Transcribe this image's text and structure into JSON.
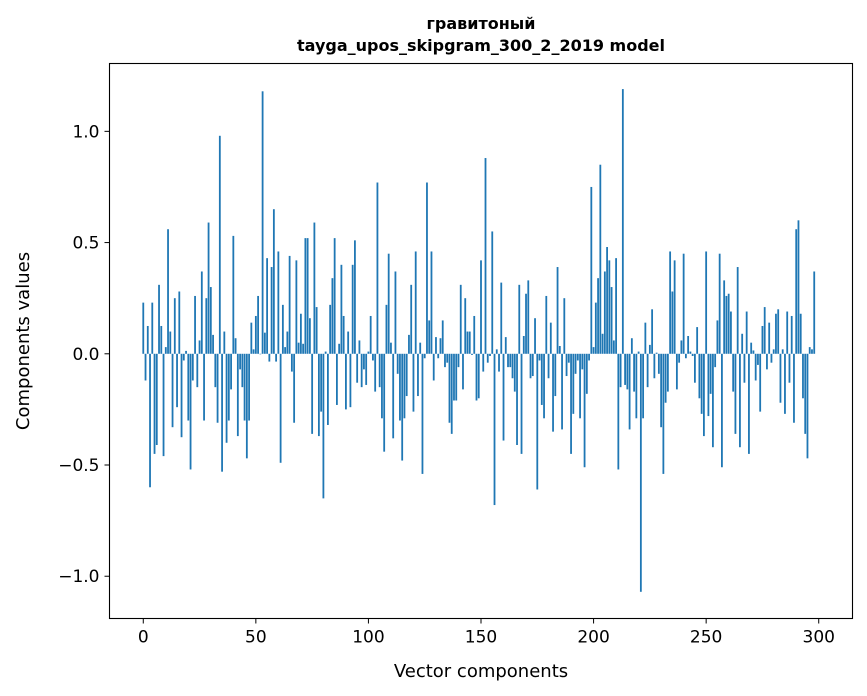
{
  "chart_data": {
    "type": "bar",
    "title": "гравитоный",
    "subtitle": "tayga_upos_skipgram_300_2_2019 model",
    "xlabel": "Vector components",
    "ylabel": "Components values",
    "xlim": [
      -15,
      315
    ],
    "ylim": [
      -1.19,
      1.305
    ],
    "xticks": [
      0,
      50,
      100,
      150,
      200,
      250,
      300
    ],
    "xtick_labels": [
      "0",
      "50",
      "100",
      "150",
      "200",
      "250",
      "300"
    ],
    "yticks": [
      -1.0,
      -0.5,
      0.0,
      0.5,
      1.0
    ],
    "ytick_labels": [
      "−1.0",
      "−0.5",
      "0.0",
      "0.5",
      "1.0"
    ],
    "grid": false,
    "bar_color": "#1f77b4",
    "values": [
      0.23,
      -0.12,
      0.125,
      -0.6,
      0.23,
      -0.45,
      -0.41,
      0.31,
      0.125,
      -0.46,
      0.03,
      0.56,
      0.1,
      -0.33,
      0.25,
      -0.24,
      0.28,
      -0.375,
      -0.03,
      0.013,
      -0.3,
      -0.52,
      -0.12,
      0.26,
      -0.15,
      0.06,
      0.37,
      -0.3,
      0.25,
      0.59,
      0.3,
      0.085,
      -0.15,
      -0.31,
      0.98,
      -0.53,
      0.1,
      -0.4,
      -0.3,
      -0.16,
      0.53,
      0.07,
      -0.37,
      -0.07,
      -0.15,
      -0.3,
      -0.47,
      -0.3,
      0.14,
      0.02,
      0.17,
      0.26,
      0.0,
      1.18,
      0.095,
      0.43,
      -0.035,
      0.39,
      0.65,
      -0.035,
      0.46,
      -0.49,
      0.22,
      0.03,
      0.1,
      0.44,
      -0.08,
      -0.31,
      0.42,
      0.05,
      0.18,
      0.045,
      0.52,
      0.52,
      0.16,
      -0.36,
      0.59,
      0.21,
      -0.37,
      -0.26,
      -0.65,
      0.01,
      -0.32,
      0.22,
      0.34,
      0.52,
      -0.23,
      0.045,
      0.4,
      0.17,
      -0.25,
      0.1,
      -0.24,
      0.4,
      0.51,
      -0.13,
      0.06,
      -0.15,
      -0.07,
      -0.14,
      0.01,
      0.17,
      -0.03,
      -0.17,
      0.77,
      -0.15,
      -0.29,
      -0.44,
      0.22,
      0.45,
      0.05,
      -0.38,
      0.37,
      -0.09,
      -0.3,
      -0.48,
      -0.29,
      -0.19,
      0.085,
      0.31,
      -0.26,
      0.46,
      -0.19,
      0.05,
      -0.54,
      -0.02,
      0.77,
      0.15,
      0.46,
      -0.12,
      0.075,
      -0.02,
      0.07,
      0.15,
      -0.06,
      -0.04,
      -0.31,
      -0.36,
      -0.21,
      -0.21,
      -0.06,
      0.31,
      -0.16,
      0.25,
      0.1,
      0.1,
      -0.005,
      0.17,
      -0.21,
      -0.2,
      0.42,
      -0.08,
      0.88,
      -0.04,
      -0.01,
      0.55,
      -0.68,
      0.02,
      -0.08,
      0.32,
      -0.39,
      0.075,
      -0.06,
      -0.06,
      -0.11,
      -0.17,
      -0.41,
      0.31,
      -0.45,
      0.08,
      0.27,
      0.33,
      -0.11,
      -0.1,
      0.16,
      -0.61,
      -0.03,
      -0.23,
      -0.29,
      0.26,
      -0.11,
      0.14,
      -0.35,
      -0.19,
      0.39,
      0.035,
      -0.34,
      0.25,
      -0.1,
      -0.04,
      -0.45,
      -0.27,
      -0.09,
      -0.03,
      -0.29,
      -0.07,
      -0.51,
      -0.18,
      -0.03,
      0.75,
      0.03,
      0.23,
      0.34,
      0.85,
      0.09,
      0.37,
      0.48,
      0.42,
      0.3,
      0.06,
      0.43,
      -0.52,
      -0.15,
      1.19,
      -0.14,
      -0.16,
      -0.34,
      0.07,
      -0.17,
      -0.29,
      0.01,
      -1.07,
      -0.29,
      0.14,
      -0.15,
      0.04,
      0.2,
      -0.11,
      0.005,
      -0.09,
      -0.33,
      -0.54,
      -0.22,
      -0.17,
      0.46,
      0.28,
      0.42,
      -0.16,
      -0.04,
      0.06,
      0.45,
      -0.02,
      0.08,
      0.01,
      -0.01,
      -0.13,
      0.12,
      -0.2,
      -0.27,
      -0.37,
      0.46,
      -0.28,
      -0.18,
      -0.42,
      -0.06,
      0.15,
      0.45,
      -0.51,
      0.33,
      0.26,
      0.27,
      0.19,
      -0.17,
      -0.36,
      0.39,
      -0.42,
      0.09,
      -0.13,
      0.19,
      -0.45,
      0.05,
      0.015,
      -0.12,
      -0.05,
      -0.26,
      0.125,
      0.21,
      -0.07,
      0.14,
      -0.04,
      0.02,
      0.18,
      0.2,
      -0.22,
      0.02,
      -0.27,
      0.19,
      -0.13,
      0.17,
      -0.31,
      0.56,
      0.6,
      0.18,
      -0.2,
      -0.36,
      -0.47,
      0.03,
      0.02,
      0.37
    ]
  }
}
